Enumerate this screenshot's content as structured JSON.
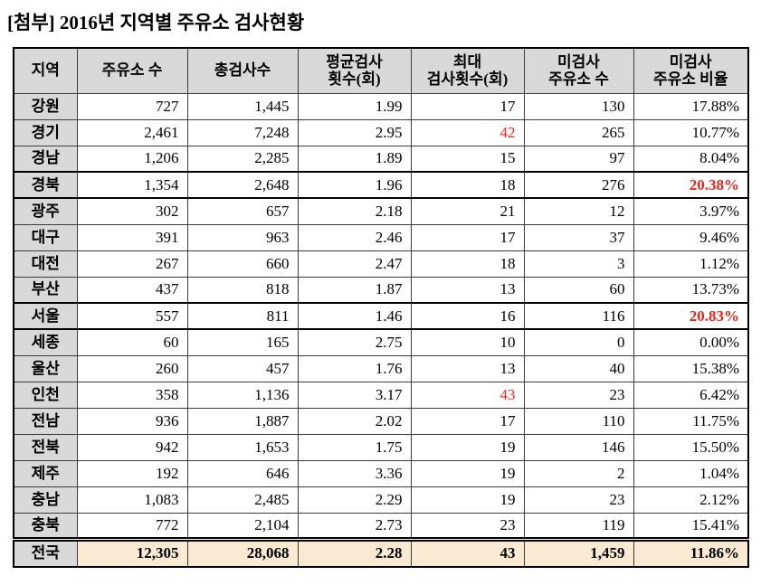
{
  "title": "[첨부] 2016년 지역별 주유소 검사현황",
  "colors": {
    "header_bg": "#d9d9d9",
    "region_col_bg": "#d9d9d9",
    "total_row_bg": "#fbead2",
    "highlight_red": "#e8261e",
    "border": "#000000"
  },
  "table": {
    "columns": [
      {
        "key": "region",
        "label": "지역"
      },
      {
        "key": "stations",
        "label": "주유소 수"
      },
      {
        "key": "total",
        "label": "총검사수"
      },
      {
        "key": "avg",
        "label": "평균검사\n횟수(회)"
      },
      {
        "key": "max",
        "label": "최대\n검사횟수(회)"
      },
      {
        "key": "unchecked",
        "label": "미검사\n주유소 수"
      },
      {
        "key": "ratio",
        "label": "미검사\n주유소 비율"
      }
    ],
    "rows": [
      {
        "region": "강원",
        "stations": "727",
        "total": "1,445",
        "avg": "1.99",
        "max": "17",
        "unchecked": "130",
        "ratio": "17.88%"
      },
      {
        "region": "경기",
        "stations": "2,461",
        "total": "7,248",
        "avg": "2.95",
        "max": "42",
        "unchecked": "265",
        "ratio": "10.77%",
        "max_red": true
      },
      {
        "region": "경남",
        "stations": "1,206",
        "total": "2,285",
        "avg": "1.89",
        "max": "15",
        "unchecked": "97",
        "ratio": "8.04%"
      },
      {
        "region": "경북",
        "stations": "1,354",
        "total": "2,648",
        "avg": "1.96",
        "max": "18",
        "unchecked": "276",
        "ratio": "20.38%",
        "ratio_red": true,
        "boxed": true
      },
      {
        "region": "광주",
        "stations": "302",
        "total": "657",
        "avg": "2.18",
        "max": "21",
        "unchecked": "12",
        "ratio": "3.97%"
      },
      {
        "region": "대구",
        "stations": "391",
        "total": "963",
        "avg": "2.46",
        "max": "17",
        "unchecked": "37",
        "ratio": "9.46%"
      },
      {
        "region": "대전",
        "stations": "267",
        "total": "660",
        "avg": "2.47",
        "max": "18",
        "unchecked": "3",
        "ratio": "1.12%"
      },
      {
        "region": "부산",
        "stations": "437",
        "total": "818",
        "avg": "1.87",
        "max": "13",
        "unchecked": "60",
        "ratio": "13.73%"
      },
      {
        "region": "서울",
        "stations": "557",
        "total": "811",
        "avg": "1.46",
        "max": "16",
        "unchecked": "116",
        "ratio": "20.83%",
        "ratio_red": true,
        "boxed": true
      },
      {
        "region": "세종",
        "stations": "60",
        "total": "165",
        "avg": "2.75",
        "max": "10",
        "unchecked": "0",
        "ratio": "0.00%"
      },
      {
        "region": "울산",
        "stations": "260",
        "total": "457",
        "avg": "1.76",
        "max": "13",
        "unchecked": "40",
        "ratio": "15.38%"
      },
      {
        "region": "인천",
        "stations": "358",
        "total": "1,136",
        "avg": "3.17",
        "max": "43",
        "unchecked": "23",
        "ratio": "6.42%",
        "max_red": true
      },
      {
        "region": "전남",
        "stations": "936",
        "total": "1,887",
        "avg": "2.02",
        "max": "17",
        "unchecked": "110",
        "ratio": "11.75%"
      },
      {
        "region": "전북",
        "stations": "942",
        "total": "1,653",
        "avg": "1.75",
        "max": "19",
        "unchecked": "146",
        "ratio": "15.50%"
      },
      {
        "region": "제주",
        "stations": "192",
        "total": "646",
        "avg": "3.36",
        "max": "19",
        "unchecked": "2",
        "ratio": "1.04%"
      },
      {
        "region": "충남",
        "stations": "1,083",
        "total": "2,485",
        "avg": "2.29",
        "max": "19",
        "unchecked": "23",
        "ratio": "2.12%"
      },
      {
        "region": "충북",
        "stations": "772",
        "total": "2,104",
        "avg": "2.73",
        "max": "23",
        "unchecked": "119",
        "ratio": "15.41%"
      },
      {
        "region": "전국",
        "stations": "12,305",
        "total": "28,068",
        "avg": "2.28",
        "max": "43",
        "unchecked": "1,459",
        "ratio": "11.86%",
        "is_total": true
      }
    ]
  }
}
